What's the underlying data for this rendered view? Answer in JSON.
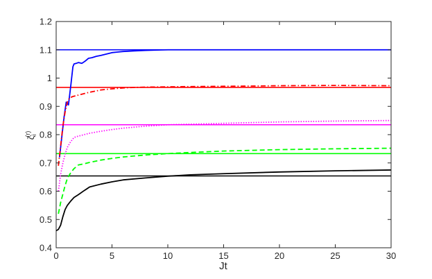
{
  "chart_data": {
    "type": "line",
    "title": "",
    "xlabel": "Jt",
    "ylabel": "ζ_i^(r)",
    "ylabel_main": "ζ",
    "ylabel_sub": "i",
    "ylabel_sup": "(r)",
    "xlim": [
      0,
      30
    ],
    "ylim": [
      0.4,
      1.2
    ],
    "xticks": [
      0,
      5,
      10,
      15,
      20,
      25,
      30
    ],
    "yticks": [
      0.4,
      0.5,
      0.6,
      0.7,
      0.8,
      0.9,
      1.0,
      1.1,
      1.2
    ],
    "xtick_labels": [
      "0",
      "5",
      "10",
      "15",
      "20",
      "25",
      "30"
    ],
    "ytick_labels": [
      "0.4",
      "0.5",
      "0.6",
      "0.7",
      "0.8",
      "0.9",
      "1",
      "1.1",
      "1.2"
    ],
    "grid": false,
    "legend": "none",
    "reference_lines": [
      {
        "y": 1.1,
        "color": "#0000ff"
      },
      {
        "y": 0.967,
        "color": "#ff0000"
      },
      {
        "y": 0.835,
        "color": "#ff00ff"
      },
      {
        "y": 0.733,
        "color": "#00ff00"
      },
      {
        "y": 0.654,
        "color": "#000000"
      }
    ],
    "series": [
      {
        "color": "#0000ff",
        "style": "solid",
        "x": [
          0.3,
          0.5,
          0.7,
          0.9,
          1.1,
          1.3,
          1.5,
          1.6,
          1.8,
          2.0,
          2.3,
          2.6,
          2.9,
          3.2,
          3.6,
          4.0,
          4.5,
          5.0,
          5.5,
          6.0,
          7.0,
          8.0,
          9.0,
          10.0,
          12.0,
          15.0,
          20.0,
          25.0,
          30.0
        ],
        "y": [
          0.72,
          0.79,
          0.86,
          0.915,
          0.905,
          0.97,
          1.04,
          1.05,
          1.052,
          1.055,
          1.052,
          1.06,
          1.07,
          1.072,
          1.077,
          1.08,
          1.085,
          1.09,
          1.092,
          1.094,
          1.096,
          1.098,
          1.099,
          1.1,
          1.1,
          1.1,
          1.1,
          1.1,
          1.1
        ]
      },
      {
        "color": "#ff0000",
        "style": "dashdot",
        "x": [
          0.2,
          0.4,
          0.6,
          0.8,
          1.0,
          1.2,
          1.5,
          2.0,
          3.0,
          4.0,
          5.0,
          6.0,
          7.0,
          8.0,
          10.0,
          12.0,
          15.0,
          18.0,
          20.0,
          25.0,
          30.0
        ],
        "y": [
          0.69,
          0.76,
          0.83,
          0.88,
          0.915,
          0.93,
          0.935,
          0.94,
          0.95,
          0.958,
          0.962,
          0.965,
          0.967,
          0.968,
          0.969,
          0.97,
          0.971,
          0.972,
          0.973,
          0.974,
          0.973
        ]
      },
      {
        "color": "#ff00ff",
        "style": "dotted",
        "x": [
          0.2,
          0.4,
          0.6,
          0.8,
          1.0,
          1.3,
          1.6,
          2.0,
          2.5,
          3.0,
          4.0,
          5.0,
          6.0,
          8.0,
          10.0,
          15.0,
          20.0,
          25.0,
          30.0
        ],
        "y": [
          0.6,
          0.66,
          0.7,
          0.73,
          0.755,
          0.775,
          0.79,
          0.795,
          0.8,
          0.805,
          0.812,
          0.818,
          0.823,
          0.83,
          0.835,
          0.84,
          0.845,
          0.848,
          0.85
        ]
      },
      {
        "color": "#00ff00",
        "style": "dashed",
        "x": [
          0.2,
          0.4,
          0.6,
          0.8,
          1.0,
          1.3,
          1.6,
          2.0,
          2.5,
          3.0,
          4.0,
          5.0,
          6.0,
          8.0,
          10.0,
          12.0,
          15.0,
          20.0,
          25.0,
          30.0
        ],
        "y": [
          0.52,
          0.56,
          0.59,
          0.62,
          0.645,
          0.665,
          0.68,
          0.693,
          0.697,
          0.702,
          0.71,
          0.716,
          0.721,
          0.728,
          0.733,
          0.737,
          0.742,
          0.747,
          0.75,
          0.752
        ]
      },
      {
        "color": "#000000",
        "style": "solid",
        "x": [
          0.0,
          0.2,
          0.4,
          0.6,
          0.8,
          1.0,
          1.3,
          1.6,
          2.0,
          2.5,
          3.0,
          4.0,
          5.0,
          6.0,
          8.0,
          10.0,
          12.0,
          15.0,
          20.0,
          25.0,
          30.0
        ],
        "y": [
          0.46,
          0.465,
          0.48,
          0.51,
          0.535,
          0.55,
          0.565,
          0.578,
          0.588,
          0.602,
          0.615,
          0.625,
          0.633,
          0.64,
          0.647,
          0.653,
          0.658,
          0.662,
          0.668,
          0.672,
          0.675
        ]
      }
    ]
  }
}
